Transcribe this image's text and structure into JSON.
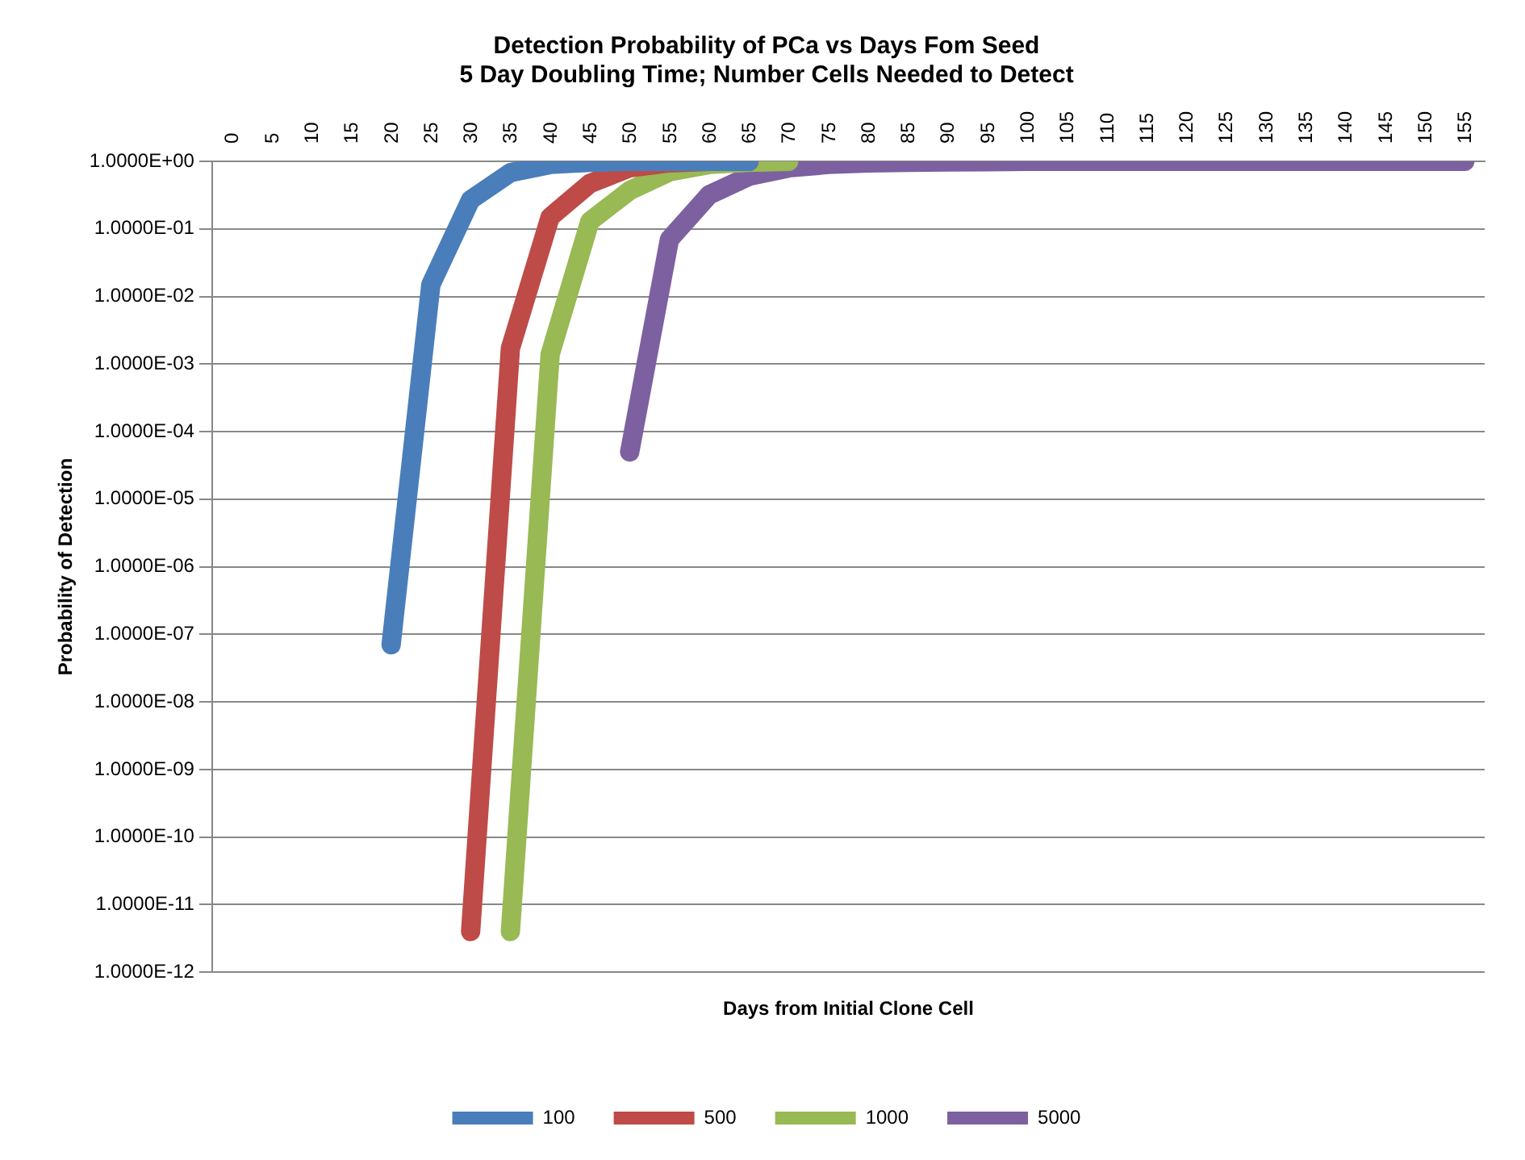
{
  "chart_data": {
    "type": "line",
    "title": "Detection Probability of PCa vs Days Fom Seed\n5 Day Doubling Time; Number Cells Needed to Detect",
    "xlabel": "Days from Initial Clone Cell",
    "ylabel": "Probability of Detection",
    "categories": [
      "0",
      "5",
      "10",
      "15",
      "20",
      "25",
      "30",
      "35",
      "40",
      "45",
      "50",
      "55",
      "60",
      "65",
      "70",
      "75",
      "80",
      "85",
      "90",
      "95",
      "100",
      "105",
      "110",
      "115",
      "120",
      "125",
      "130",
      "135",
      "140",
      "145",
      "150",
      "155"
    ],
    "log": "y",
    "ylim": [
      1e-12,
      1
    ],
    "yticks": [
      {
        "value": 1e-12,
        "label": "1.0000E-12"
      },
      {
        "value": 1e-11,
        "label": "1.0000E-11"
      },
      {
        "value": 1e-10,
        "label": "1.0000E-10"
      },
      {
        "value": 1e-09,
        "label": "1.0000E-09"
      },
      {
        "value": 1e-08,
        "label": "1.0000E-08"
      },
      {
        "value": 1e-07,
        "label": "1.0000E-07"
      },
      {
        "value": 1e-06,
        "label": "1.0000E-06"
      },
      {
        "value": 1e-05,
        "label": "1.0000E-05"
      },
      {
        "value": 0.0001,
        "label": "1.0000E-04"
      },
      {
        "value": 0.001,
        "label": "1.0000E-03"
      },
      {
        "value": 0.01,
        "label": "1.0000E-02"
      },
      {
        "value": 0.1,
        "label": "1.0000E-01"
      },
      {
        "value": 1,
        "label": "1.0000E+00"
      }
    ],
    "grid": "y",
    "legend": "bottom",
    "marker": "none",
    "line_style": "solid",
    "series": [
      {
        "name": "100",
        "color": "#4a7ebb",
        "values": [
          null,
          null,
          null,
          null,
          7e-08,
          0.015,
          0.27,
          0.68,
          0.9,
          0.97,
          1,
          1,
          1,
          1,
          null,
          null,
          null,
          null,
          null,
          null,
          null,
          null,
          null,
          null,
          null,
          null,
          null,
          null,
          null,
          null,
          null,
          null
        ]
      },
      {
        "name": "500",
        "color": "#be4b48",
        "values": [
          null,
          null,
          null,
          null,
          null,
          null,
          4e-12,
          0.0017,
          0.15,
          0.47,
          0.8,
          0.95,
          1,
          1,
          null,
          null,
          null,
          null,
          null,
          null,
          null,
          null,
          null,
          null,
          null,
          null,
          null,
          null,
          null,
          null,
          null,
          null
        ]
      },
      {
        "name": "1000",
        "color": "#98b954",
        "values": [
          null,
          null,
          null,
          null,
          null,
          null,
          null,
          4e-12,
          0.0014,
          0.13,
          0.37,
          0.7,
          0.9,
          0.97,
          1,
          null,
          null,
          null,
          null,
          null,
          null,
          null,
          null,
          null,
          null,
          null,
          null,
          null,
          null,
          null,
          null,
          null
        ]
      },
      {
        "name": "5000",
        "color": "#7d60a0",
        "values": [
          null,
          null,
          null,
          null,
          null,
          null,
          null,
          null,
          null,
          null,
          5e-05,
          0.07,
          0.32,
          0.6,
          0.8,
          0.9,
          0.95,
          0.97,
          0.98,
          0.99,
          1,
          1,
          1,
          1,
          1,
          1,
          1,
          1,
          1,
          1,
          1,
          1
        ]
      }
    ]
  }
}
